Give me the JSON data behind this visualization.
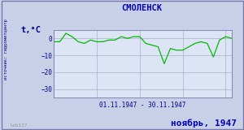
{
  "title": "СМОЛЕНСК",
  "xlabel": "01.11.1947 - 30.11.1947",
  "ylabel": "t,°C",
  "footer_left": "lab127",
  "footer_right": "ноябрь, 1947",
  "side_label": "источник: гидрометцентр",
  "ylim": [
    -35,
    5
  ],
  "yticks": [
    0,
    -10,
    -20,
    -30
  ],
  "days": [
    1,
    2,
    3,
    4,
    5,
    6,
    7,
    8,
    9,
    10,
    11,
    12,
    13,
    14,
    15,
    16,
    17,
    18,
    19,
    20,
    21,
    22,
    23,
    24,
    25,
    26,
    27,
    28,
    29,
    30
  ],
  "temps": [
    -2,
    -2,
    3,
    1,
    -2,
    -3,
    -1,
    -2,
    -2,
    -1,
    -1,
    1,
    0,
    1,
    1,
    -3,
    -4,
    -5,
    -15,
    -6,
    -7,
    -7,
    -5,
    -3,
    -2,
    -3,
    -11,
    -1,
    1,
    0
  ],
  "line_color": "#00bb00",
  "bg_color": "#c8d0e8",
  "plot_bg": "#dde4f5",
  "grid_color": "#aab0c8",
  "title_color": "#0000bb",
  "footer_color": "#0000bb",
  "axis_label_color": "#000088",
  "tick_label_color": "#000088",
  "border_color": "#7878aa"
}
